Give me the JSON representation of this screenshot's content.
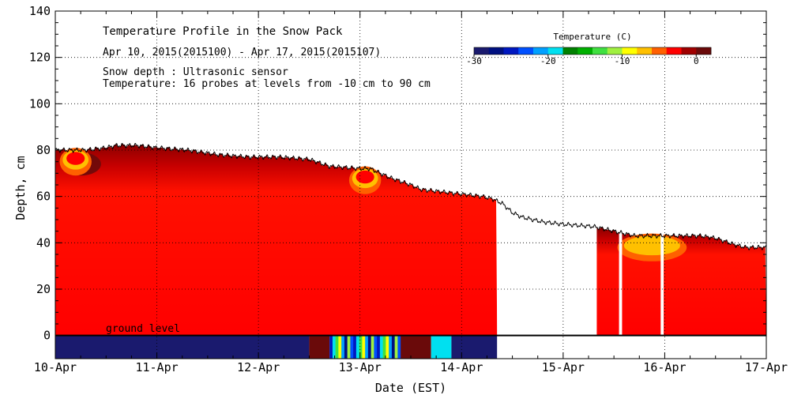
{
  "chart_data": {
    "type": "heatmap",
    "title": "Temperature Profile in the Snow Pack",
    "subtitle": "Apr 10, 2015(2015100) - Apr 17, 2015(2015107)",
    "notes": [
      "Snow depth : Ultrasonic sensor",
      "Temperature: 16 probes at levels from -10 cm to 90 cm"
    ],
    "xlabel": "Date (EST)",
    "ylabel": "Depth, cm",
    "x_ticks": [
      "10-Apr",
      "11-Apr",
      "12-Apr",
      "13-Apr",
      "14-Apr",
      "15-Apr",
      "16-Apr",
      "17-Apr"
    ],
    "y_ticks": [
      0,
      20,
      40,
      60,
      80,
      100,
      120,
      140
    ],
    "y_ticks_text": [
      "0",
      "20",
      "40",
      "60",
      "80",
      "100",
      "120",
      "140"
    ],
    "xlim_days": [
      0,
      7
    ],
    "ylim": [
      -10,
      140
    ],
    "grid": true,
    "ground_level_label": "ground level",
    "colorbar": {
      "title": "Temperature (C)",
      "ticks": [
        -30,
        -20,
        -10,
        0
      ],
      "ticks_text": [
        "-30",
        "-20",
        "-10",
        "0"
      ],
      "range": [
        -30,
        2
      ],
      "colors": [
        "#1a1a6e",
        "#001080",
        "#0018c0",
        "#0050ff",
        "#00a0ff",
        "#00e0f0",
        "#008000",
        "#00b000",
        "#40e040",
        "#a0f040",
        "#ffff00",
        "#ffc000",
        "#ff6000",
        "#ff0000",
        "#a00000",
        "#6a0a0a"
      ]
    },
    "snow_depth_series": {
      "name": "Snow depth",
      "x_day": [
        0,
        0.3,
        0.5,
        0.6,
        0.8,
        1.0,
        1.3,
        1.6,
        1.9,
        2.2,
        2.5,
        2.7,
        3.0,
        3.1,
        3.3,
        3.5,
        3.6,
        3.8,
        4.0,
        4.2,
        4.3,
        4.4,
        4.5,
        4.6,
        4.8,
        5.0,
        5.3,
        5.5,
        5.7,
        5.9,
        6.0,
        6.2,
        6.35,
        6.5,
        6.7,
        6.8,
        7.0
      ],
      "depth_cm": [
        80,
        80,
        81,
        82,
        82,
        81,
        80,
        78,
        77,
        77,
        76,
        73,
        72,
        72,
        68,
        65,
        63,
        62,
        61,
        60,
        59,
        57,
        53,
        51,
        49,
        48,
        47,
        45,
        43,
        43,
        43,
        43,
        43,
        42,
        39,
        38,
        38
      ]
    },
    "no_data_intervals_days": [
      [
        4.35,
        5.33
      ],
      [
        5.55,
        5.58
      ],
      [
        5.96,
        5.99
      ]
    ],
    "temperature_regions": [
      {
        "region": "snowpack bulk",
        "x_day": [
          0,
          4.35
        ],
        "temperature_c": 0
      },
      {
        "region": "snowpack bulk",
        "x_day": [
          5.33,
          7.0
        ],
        "temperature_c": 0
      },
      {
        "region": "near-surface warm layer",
        "x_day": [
          0.05,
          0.45
        ],
        "temperature_c": 0.5
      },
      {
        "region": "near-surface cold spot",
        "x_day": [
          0.05,
          0.35
        ],
        "temperature_c": -3
      },
      {
        "region": "near-surface cold spot",
        "x_day": [
          2.9,
          3.2
        ],
        "temperature_c": -3
      },
      {
        "region": "near-surface cold spot",
        "x_day": [
          5.55,
          6.2
        ],
        "temperature_c": -7
      },
      {
        "region": "ground soil",
        "x_day": [
          0,
          2.5
        ],
        "temperature_c": -30
      },
      {
        "region": "ground soil",
        "x_day": [
          2.5,
          2.7
        ],
        "temperature_c": 0
      },
      {
        "region": "ground soil",
        "x_day": [
          2.7,
          3.4
        ],
        "temperature_c": -15
      },
      {
        "region": "ground soil",
        "x_day": [
          3.4,
          3.7
        ],
        "temperature_c": 0
      },
      {
        "region": "ground soil",
        "x_day": [
          3.7,
          3.9
        ],
        "temperature_c": -20
      },
      {
        "region": "ground soil",
        "x_day": [
          3.9,
          4.35
        ],
        "temperature_c": -30
      }
    ]
  }
}
